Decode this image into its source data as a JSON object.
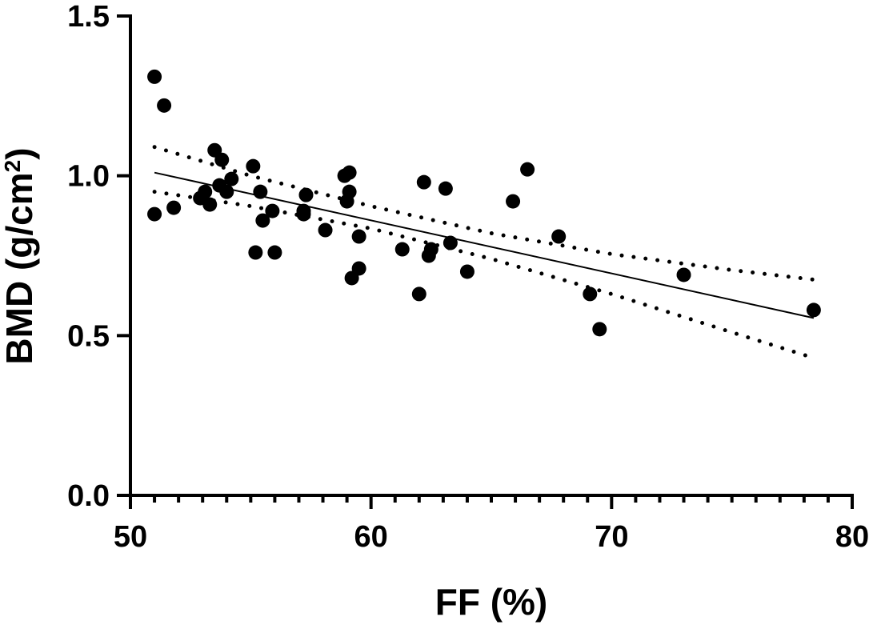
{
  "chart_data": {
    "type": "scatter",
    "title": "",
    "xlabel": "FF (%)",
    "ylabel_main": "BMD (g/cm",
    "ylabel_sup": "2",
    "ylabel_close": ")",
    "xlim": [
      50,
      80
    ],
    "ylim": [
      0,
      1.5
    ],
    "x_ticks": [
      50,
      60,
      70,
      80
    ],
    "x_tick_labels": [
      "50",
      "60",
      "70",
      "80"
    ],
    "x_minor_step": 1,
    "y_ticks": [
      0,
      0.5,
      1.0,
      1.5
    ],
    "y_tick_labels": [
      "0.0",
      "0.5",
      "1.0",
      "1.5"
    ],
    "grid": false,
    "legend": "none",
    "colors": {
      "points": "#000000",
      "line": "#000000"
    },
    "points": [
      {
        "x": 51.0,
        "y": 1.31
      },
      {
        "x": 51.4,
        "y": 1.22
      },
      {
        "x": 51.0,
        "y": 0.88
      },
      {
        "x": 51.8,
        "y": 0.9
      },
      {
        "x": 52.9,
        "y": 0.93
      },
      {
        "x": 53.1,
        "y": 0.95
      },
      {
        "x": 53.3,
        "y": 0.91
      },
      {
        "x": 53.5,
        "y": 1.08
      },
      {
        "x": 53.7,
        "y": 0.97
      },
      {
        "x": 53.8,
        "y": 1.05
      },
      {
        "x": 54.0,
        "y": 0.95
      },
      {
        "x": 54.2,
        "y": 0.99
      },
      {
        "x": 55.1,
        "y": 1.03
      },
      {
        "x": 55.2,
        "y": 0.76
      },
      {
        "x": 55.4,
        "y": 0.95
      },
      {
        "x": 55.5,
        "y": 0.86
      },
      {
        "x": 55.9,
        "y": 0.89
      },
      {
        "x": 56.0,
        "y": 0.76
      },
      {
        "x": 57.2,
        "y": 0.89
      },
      {
        "x": 57.2,
        "y": 0.88
      },
      {
        "x": 57.3,
        "y": 0.94
      },
      {
        "x": 58.1,
        "y": 0.83
      },
      {
        "x": 58.9,
        "y": 1.0
      },
      {
        "x": 59.0,
        "y": 0.92
      },
      {
        "x": 59.1,
        "y": 1.01
      },
      {
        "x": 59.1,
        "y": 0.95
      },
      {
        "x": 59.2,
        "y": 0.68
      },
      {
        "x": 59.5,
        "y": 0.81
      },
      {
        "x": 59.5,
        "y": 0.71
      },
      {
        "x": 61.3,
        "y": 0.77
      },
      {
        "x": 62.0,
        "y": 0.63
      },
      {
        "x": 62.2,
        "y": 0.98
      },
      {
        "x": 62.4,
        "y": 0.75
      },
      {
        "x": 62.5,
        "y": 0.77
      },
      {
        "x": 63.1,
        "y": 0.96
      },
      {
        "x": 63.3,
        "y": 0.79
      },
      {
        "x": 64.0,
        "y": 0.7
      },
      {
        "x": 65.9,
        "y": 0.92
      },
      {
        "x": 66.5,
        "y": 1.02
      },
      {
        "x": 67.8,
        "y": 0.81
      },
      {
        "x": 69.1,
        "y": 0.63
      },
      {
        "x": 69.5,
        "y": 0.52
      },
      {
        "x": 73.0,
        "y": 0.69
      },
      {
        "x": 78.4,
        "y": 0.58
      }
    ],
    "regression_line": {
      "x": [
        51.0,
        78.4
      ],
      "y": [
        1.01,
        0.555
      ]
    },
    "ci_upper": {
      "x": [
        51.0,
        55.0,
        60.0,
        65.0,
        70.0,
        75.0,
        78.4
      ],
      "y": [
        1.09,
        1.0,
        0.905,
        0.82,
        0.755,
        0.705,
        0.675
      ]
    },
    "ci_lower": {
      "x": [
        51.0,
        55.0,
        60.0,
        65.0,
        70.0,
        75.0,
        78.4
      ],
      "y": [
        0.95,
        0.905,
        0.835,
        0.74,
        0.63,
        0.51,
        0.43
      ]
    }
  }
}
